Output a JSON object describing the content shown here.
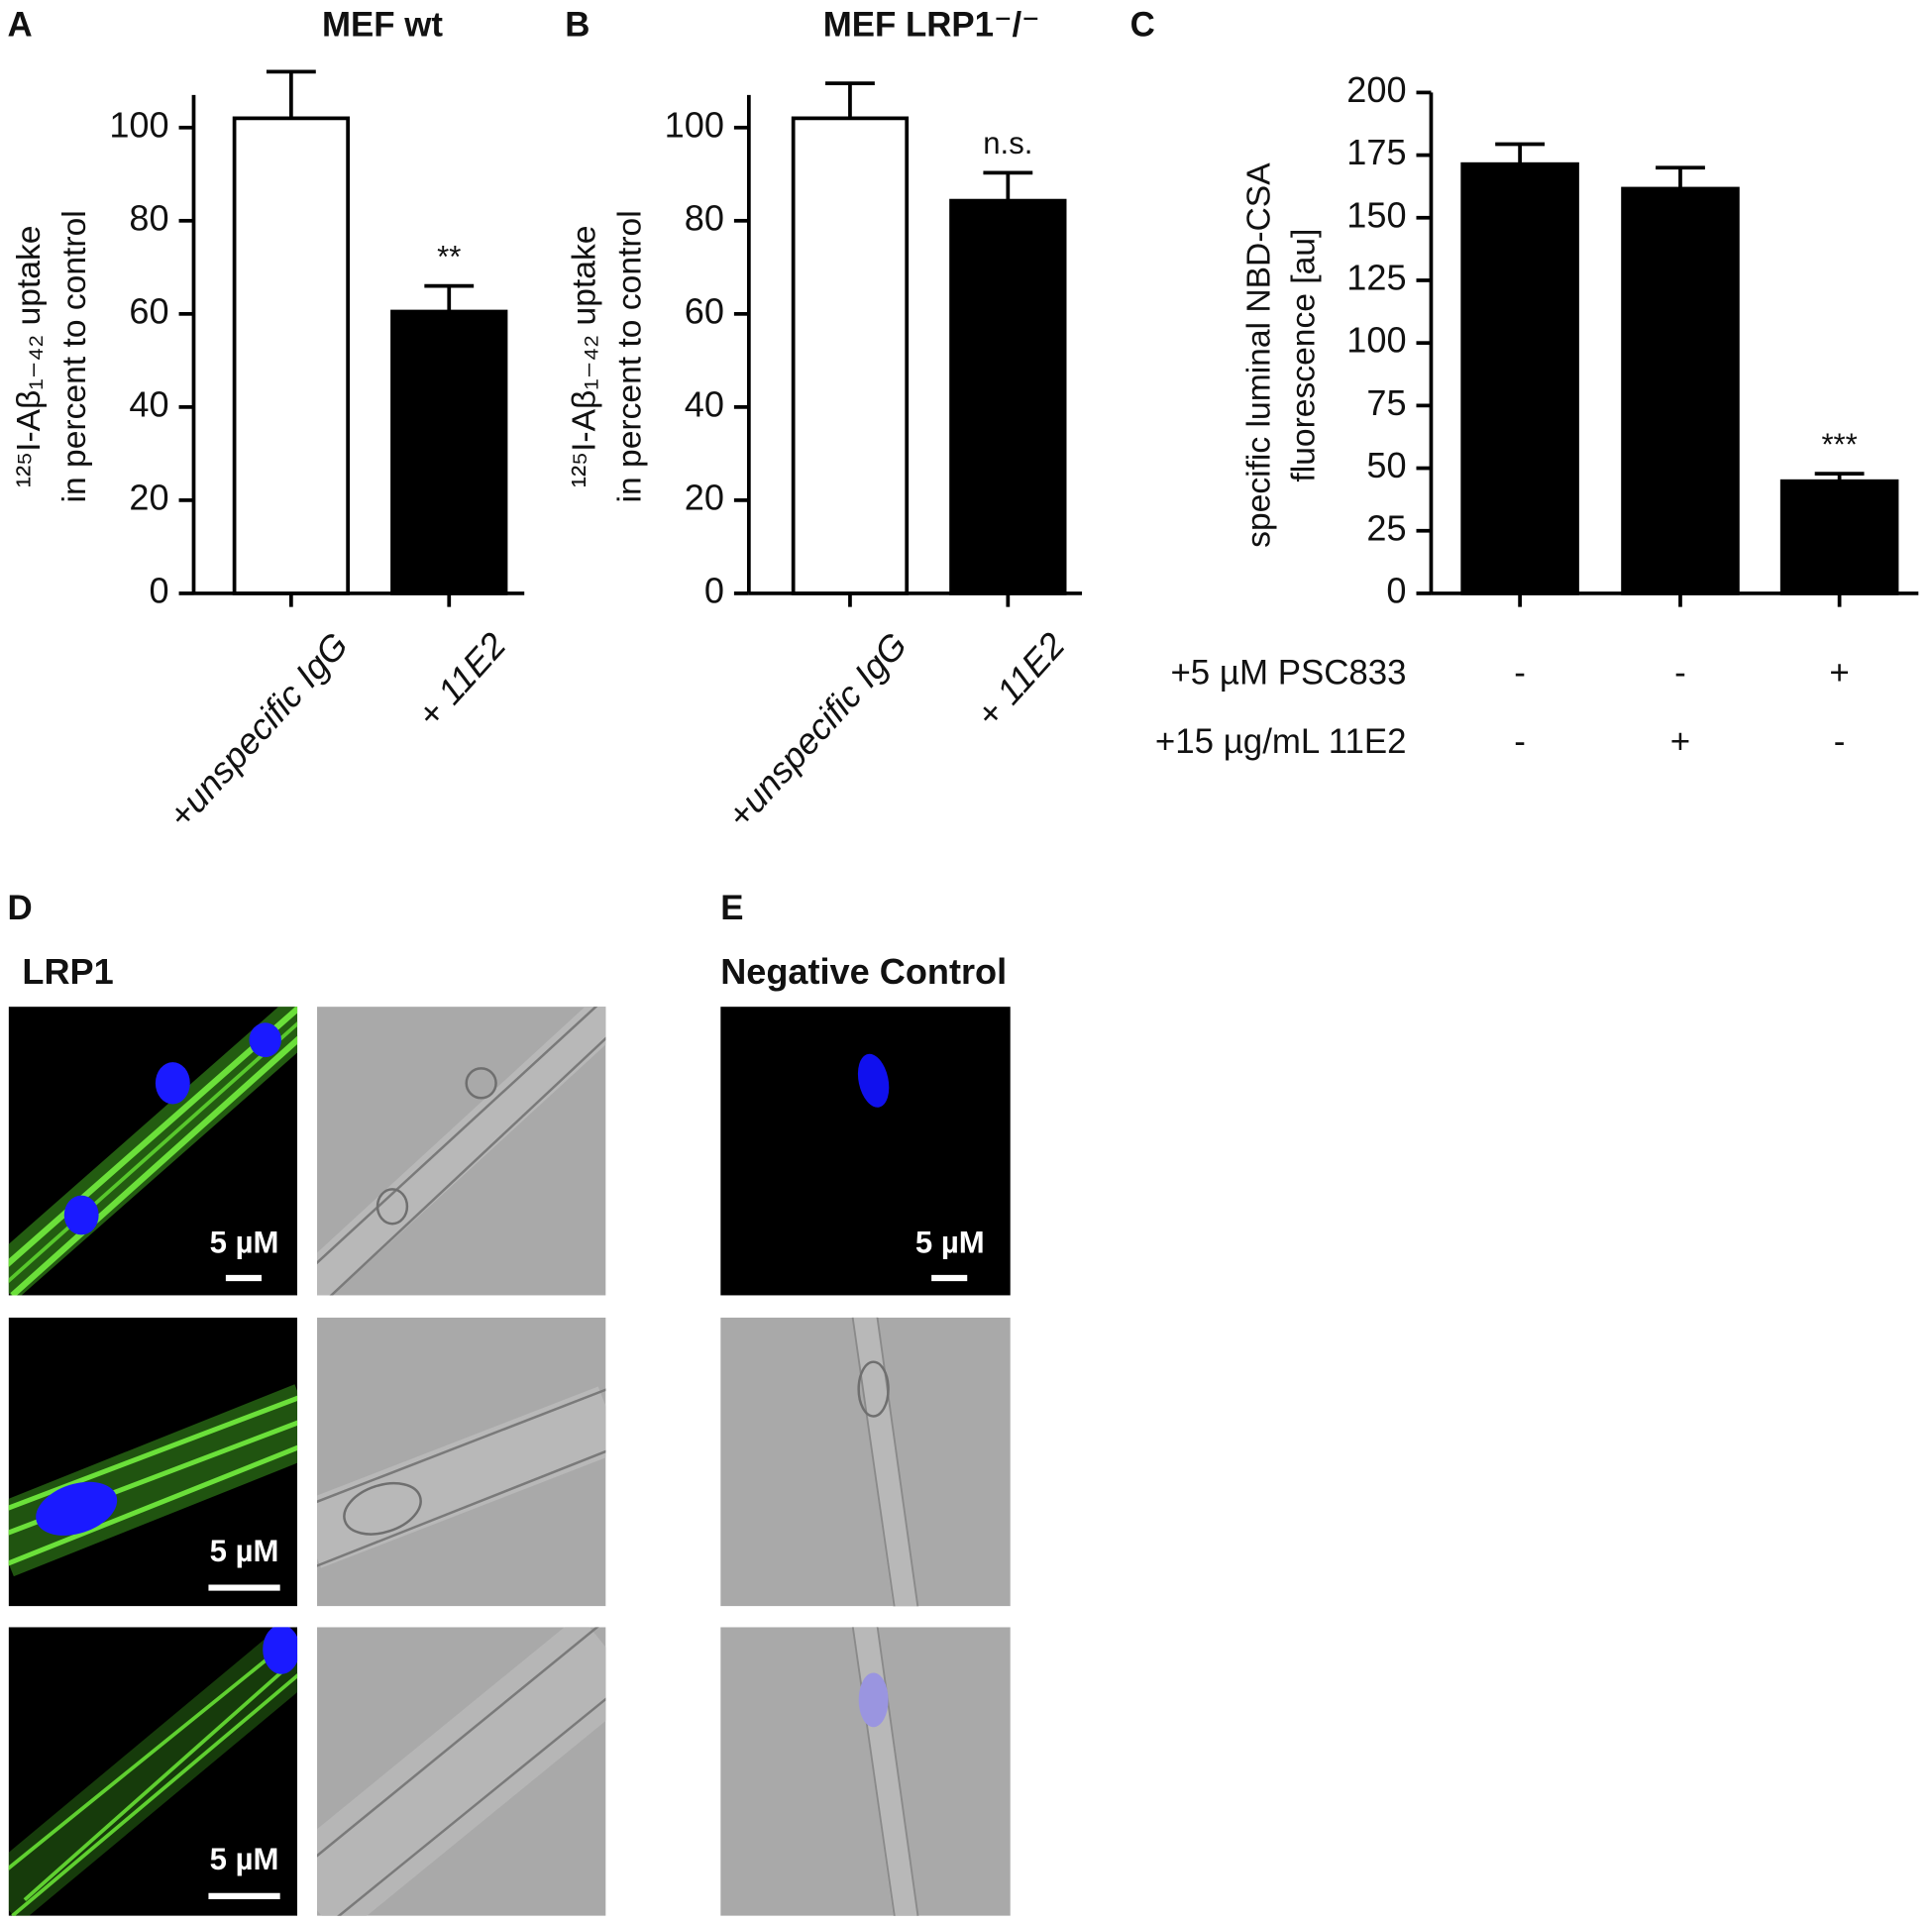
{
  "chart_data": [
    {
      "type": "bar",
      "panel": "A",
      "title": "MEF wt",
      "y_label": [
        "¹²⁵I-Aβ₁₋₄₂ uptake",
        "in percent to control"
      ],
      "categories": [
        "+unspecific IgG",
        "+ 11E2"
      ],
      "values": [
        102,
        60.5
      ],
      "errors": [
        10,
        5.5
      ],
      "colors": [
        "#ffffff",
        "#000000"
      ],
      "annotations": [
        null,
        "**"
      ],
      "ylim": [
        0,
        107
      ],
      "yticks": [
        0,
        20,
        40,
        60,
        80,
        100
      ]
    },
    {
      "type": "bar",
      "panel": "B",
      "title": "MEF LRP1⁻/⁻",
      "y_label": [
        "¹²⁵I-Aβ₁₋₄₂ uptake",
        "in percent to control"
      ],
      "categories": [
        "+unspecific IgG",
        "+ 11E2"
      ],
      "values": [
        102,
        84.3
      ],
      "errors": [
        7.5,
        6
      ],
      "colors": [
        "#ffffff",
        "#000000"
      ],
      "annotations": [
        null,
        "n.s."
      ],
      "ylim": [
        0,
        107
      ],
      "yticks": [
        0,
        20,
        40,
        60,
        80,
        100
      ]
    },
    {
      "type": "bar",
      "panel": "C",
      "y_label": [
        "specific luminal NBD-CSA",
        "fluorescence [au]"
      ],
      "categories": [
        null,
        null,
        null
      ],
      "values": [
        171.4,
        161.6,
        44.8
      ],
      "errors": [
        8,
        8.4,
        3
      ],
      "colors": [
        "#000000",
        "#000000",
        "#000000"
      ],
      "annotations": [
        null,
        null,
        "***"
      ],
      "ylim": [
        0,
        200
      ],
      "yticks": [
        0,
        25,
        50,
        75,
        100,
        125,
        150,
        175,
        200
      ],
      "conditions": [
        {
          "label": "+5 µM PSC833",
          "marks": [
            "-",
            "-",
            "+"
          ]
        },
        {
          "label": "+15 µg/mL 11E2",
          "marks": [
            "-",
            "+",
            "-"
          ]
        }
      ]
    }
  ],
  "panels": [
    {
      "letter": "D",
      "title": "LRP1",
      "scale_labels": [
        "5 µM",
        "5 µM",
        "5 µM"
      ]
    },
    {
      "letter": "E",
      "title": "Negative Control",
      "scale_labels": [
        "5 µM"
      ]
    }
  ]
}
